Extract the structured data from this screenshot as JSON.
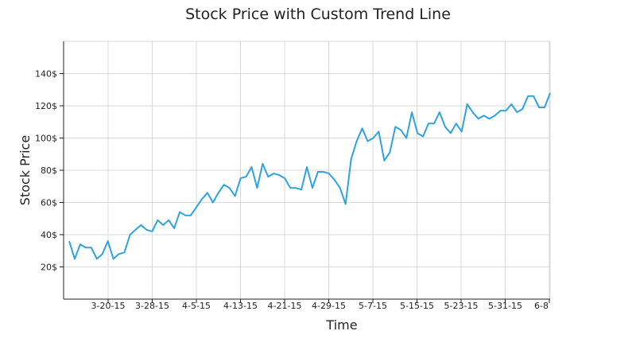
{
  "chart_data": {
    "type": "line",
    "title": "Stock Price with Custom Trend Line",
    "xlabel": "Time",
    "ylabel": "Stock Price",
    "ylim": [
      0,
      160
    ],
    "y_ticks": [
      20,
      40,
      60,
      80,
      100,
      120,
      140
    ],
    "y_tick_format_suffix": "$",
    "x_start": "3-13-15",
    "x_end": "6-9-15",
    "x_tick_labels": [
      "3-20-15",
      "3-28-15",
      "4-5-15",
      "4-13-15",
      "4-21-15",
      "4-29-15",
      "5-7-15",
      "5-15-15",
      "5-23-15",
      "5-31-15",
      "6-8"
    ],
    "grid": true,
    "series": [
      {
        "color": "#2ea3dc",
        "values": [
          36,
          25,
          34,
          32,
          32,
          25,
          28,
          36,
          25,
          28,
          29,
          40,
          43,
          46,
          43,
          42,
          49,
          46,
          49,
          44,
          54,
          52,
          52,
          57,
          62,
          66,
          60,
          66,
          71,
          69,
          64,
          75,
          76,
          82,
          69,
          84,
          76,
          78,
          77,
          75,
          69,
          69,
          68,
          82,
          69,
          79,
          79,
          78,
          74,
          69,
          59,
          87,
          98,
          106,
          98,
          100,
          104,
          86,
          91,
          107,
          105,
          100,
          116,
          103,
          101,
          109,
          109,
          116,
          107,
          103,
          109,
          104,
          121,
          116,
          112,
          114,
          112,
          114,
          117,
          117,
          121,
          116,
          118,
          126,
          126,
          119,
          119,
          128
        ]
      }
    ]
  }
}
